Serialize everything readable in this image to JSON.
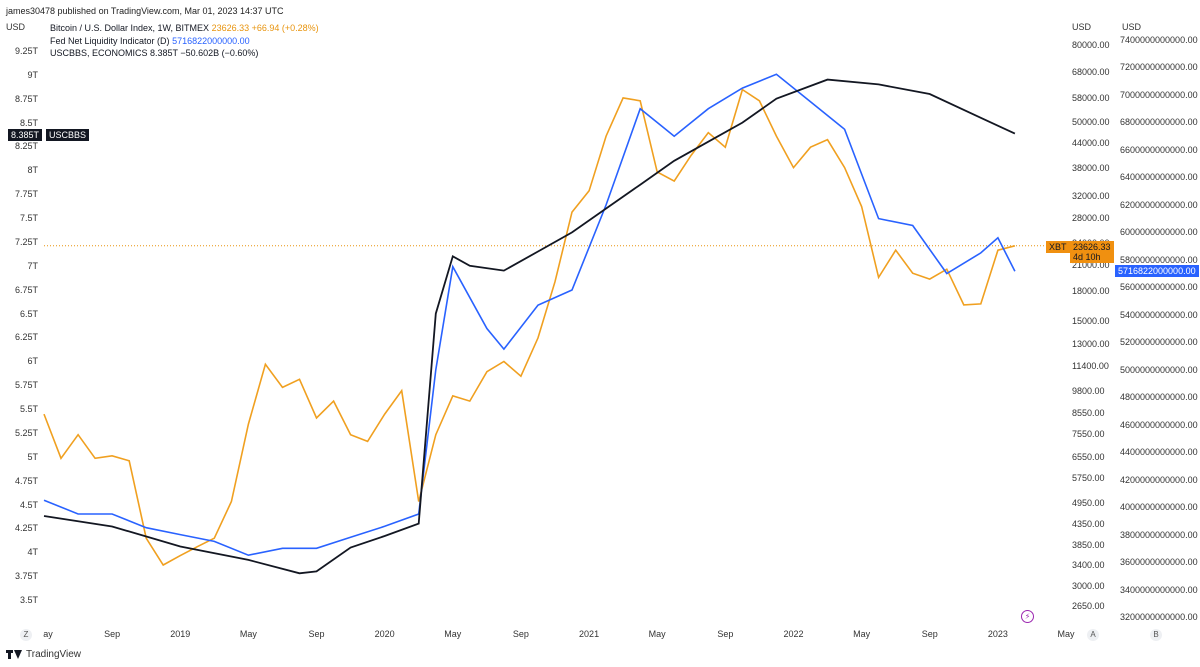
{
  "header": {
    "publisher": "james30478 published on TradingView.com, Mar 01, 2023 14:37 UTC"
  },
  "legend": [
    {
      "label": "Bitcoin / U.S. Dollar Index, 1W, BITMEX",
      "value": "23626.33 +66.94 (+0.28%)",
      "color": "#e8940e"
    },
    {
      "label": "Fed Net Liquidity Indicator (D)",
      "value": "5716822000000.00",
      "color": "#2962ff"
    },
    {
      "label": "USCBBS, ECONOMICS 8.385T −50.602B (−0.60%)",
      "value": "",
      "color": "#131722"
    }
  ],
  "axes": {
    "left_unit": "USD",
    "right1_unit": "USD",
    "right2_unit": "USD",
    "left_ticks": [
      "9.25T",
      "9T",
      "8.75T",
      "8.5T",
      "8.25T",
      "8T",
      "7.75T",
      "7.5T",
      "7.25T",
      "7T",
      "6.75T",
      "6.5T",
      "6.25T",
      "6T",
      "5.75T",
      "5.5T",
      "5.25T",
      "5T",
      "4.75T",
      "4.5T",
      "4.25T",
      "4T",
      "3.75T",
      "3.5T"
    ],
    "right1_ticks": [
      "80000.00",
      "68000.00",
      "58000.00",
      "50000.00",
      "44000.00",
      "38000.00",
      "32000.00",
      "28000.00",
      "24000.00",
      "21000.00",
      "18000.00",
      "15000.00",
      "13000.00",
      "11400.00",
      "9800.00",
      "8550.00",
      "7550.00",
      "6550.00",
      "5750.00",
      "4950.00",
      "4350.00",
      "3850.00",
      "3400.00",
      "3000.00",
      "2650.00"
    ],
    "right2_ticks": [
      "7400000000000.00",
      "7200000000000.00",
      "7000000000000.00",
      "6800000000000.00",
      "6600000000000.00",
      "6400000000000.00",
      "6200000000000.00",
      "6000000000000.00",
      "5800000000000.00",
      "5600000000000.00",
      "5400000000000.00",
      "5200000000000.00",
      "5000000000000.00",
      "4800000000000.00",
      "4600000000000.00",
      "4400000000000.00",
      "4200000000000.00",
      "4000000000000.00",
      "3800000000000.00",
      "3600000000000.00",
      "3400000000000.00",
      "3200000000000.00"
    ],
    "x_ticks": [
      "ay",
      "Sep",
      "2019",
      "May",
      "Sep",
      "2020",
      "May",
      "Sep",
      "2021",
      "May",
      "Sep",
      "2022",
      "May",
      "Sep",
      "2023",
      "May"
    ]
  },
  "tags": {
    "uscbbs_value": "8.385T",
    "uscbbs_name": "USCBBS",
    "xbt_name": "XBT",
    "xbt_value": "23626.33",
    "xbt_countdown": "4d 10h",
    "liquidity_value": "5716822000000.00"
  },
  "footer": {
    "brand": "TradingView",
    "left_button": "Z",
    "right_button_a": "A",
    "right_button_b": "B"
  },
  "chart_data": {
    "type": "line",
    "x_range": [
      "2018-05",
      "2023-05"
    ],
    "series": [
      {
        "name": "Bitcoin / U.S. Dollar Index, 1W, BITMEX",
        "color": "#e8940e",
        "axis": "right1",
        "points": [
          [
            "2018-05",
            8500
          ],
          [
            "2018-06",
            6500
          ],
          [
            "2018-07",
            7500
          ],
          [
            "2018-08",
            6500
          ],
          [
            "2018-09",
            6600
          ],
          [
            "2018-10",
            6400
          ],
          [
            "2018-11",
            4000
          ],
          [
            "2018-12",
            3400
          ],
          [
            "2019-01",
            3600
          ],
          [
            "2019-02",
            3800
          ],
          [
            "2019-03",
            4000
          ],
          [
            "2019-04",
            5000
          ],
          [
            "2019-05",
            8000
          ],
          [
            "2019-06",
            11500
          ],
          [
            "2019-07",
            10000
          ],
          [
            "2019-08",
            10500
          ],
          [
            "2019-09",
            8300
          ],
          [
            "2019-10",
            9200
          ],
          [
            "2019-11",
            7500
          ],
          [
            "2019-12",
            7200
          ],
          [
            "2020-01",
            8500
          ],
          [
            "2020-02",
            9800
          ],
          [
            "2020-03",
            5000
          ],
          [
            "2020-04",
            7500
          ],
          [
            "2020-05",
            9500
          ],
          [
            "2020-06",
            9200
          ],
          [
            "2020-07",
            11000
          ],
          [
            "2020-08",
            11700
          ],
          [
            "2020-09",
            10700
          ],
          [
            "2020-10",
            13500
          ],
          [
            "2020-11",
            19000
          ],
          [
            "2020-12",
            29000
          ],
          [
            "2021-01",
            33000
          ],
          [
            "2021-02",
            46000
          ],
          [
            "2021-03",
            58000
          ],
          [
            "2021-04",
            57000
          ],
          [
            "2021-05",
            37000
          ],
          [
            "2021-06",
            35000
          ],
          [
            "2021-07",
            41000
          ],
          [
            "2021-08",
            47000
          ],
          [
            "2021-09",
            43000
          ],
          [
            "2021-10",
            61000
          ],
          [
            "2021-11",
            57000
          ],
          [
            "2021-12",
            46000
          ],
          [
            "2022-01",
            38000
          ],
          [
            "2022-02",
            43000
          ],
          [
            "2022-03",
            45000
          ],
          [
            "2022-04",
            38000
          ],
          [
            "2022-05",
            30000
          ],
          [
            "2022-06",
            19500
          ],
          [
            "2022-07",
            23000
          ],
          [
            "2022-08",
            20000
          ],
          [
            "2022-09",
            19300
          ],
          [
            "2022-10",
            20500
          ],
          [
            "2022-11",
            16500
          ],
          [
            "2022-12",
            16600
          ],
          [
            "2023-01",
            23000
          ],
          [
            "2023-02",
            23626
          ]
        ]
      },
      {
        "name": "Fed Net Liquidity Indicator (D)",
        "color": "#2962ff",
        "axis": "right2",
        "points": [
          [
            "2018-05",
            4050000000000
          ],
          [
            "2018-07",
            3950000000000
          ],
          [
            "2018-09",
            3950000000000
          ],
          [
            "2018-11",
            3850000000000
          ],
          [
            "2019-01",
            3800000000000
          ],
          [
            "2019-03",
            3750000000000
          ],
          [
            "2019-05",
            3650000000000
          ],
          [
            "2019-07",
            3700000000000
          ],
          [
            "2019-09",
            3700000000000
          ],
          [
            "2019-11",
            3780000000000
          ],
          [
            "2020-01",
            3860000000000
          ],
          [
            "2020-03",
            3950000000000
          ],
          [
            "2020-04",
            5000000000000
          ],
          [
            "2020-05",
            5750000000000
          ],
          [
            "2020-07",
            5300000000000
          ],
          [
            "2020-08",
            5150000000000
          ],
          [
            "2020-10",
            5470000000000
          ],
          [
            "2020-12",
            5580000000000
          ],
          [
            "2021-02",
            6200000000000
          ],
          [
            "2021-04",
            6900000000000
          ],
          [
            "2021-06",
            6700000000000
          ],
          [
            "2021-08",
            6900000000000
          ],
          [
            "2021-10",
            7050000000000
          ],
          [
            "2021-12",
            7150000000000
          ],
          [
            "2022-02",
            6950000000000
          ],
          [
            "2022-04",
            6750000000000
          ],
          [
            "2022-06",
            6100000000000
          ],
          [
            "2022-08",
            6050000000000
          ],
          [
            "2022-10",
            5700000000000
          ],
          [
            "2022-12",
            5850000000000
          ],
          [
            "2023-01",
            5960000000000
          ],
          [
            "2023-02",
            5716822000000
          ]
        ]
      },
      {
        "name": "USCBBS, ECONOMICS",
        "color": "#131722",
        "axis": "left",
        "points": [
          [
            "2018-05",
            4380000000000.0
          ],
          [
            "2018-09",
            4270000000000.0
          ],
          [
            "2019-01",
            4060000000000.0
          ],
          [
            "2019-05",
            3920000000000.0
          ],
          [
            "2019-08",
            3780000000000.0
          ],
          [
            "2019-09",
            3800000000000.0
          ],
          [
            "2019-11",
            4050000000000.0
          ],
          [
            "2020-01",
            4170000000000.0
          ],
          [
            "2020-03",
            4300000000000.0
          ],
          [
            "2020-04",
            6500000000000.0
          ],
          [
            "2020-05",
            7100000000000.0
          ],
          [
            "2020-06",
            7000000000000.0
          ],
          [
            "2020-08",
            6950000000000.0
          ],
          [
            "2020-10",
            7150000000000.0
          ],
          [
            "2020-12",
            7350000000000.0
          ],
          [
            "2021-02",
            7600000000000.0
          ],
          [
            "2021-04",
            7850000000000.0
          ],
          [
            "2021-06",
            8100000000000.0
          ],
          [
            "2021-08",
            8300000000000.0
          ],
          [
            "2021-10",
            8500000000000.0
          ],
          [
            "2021-12",
            8750000000000.0
          ],
          [
            "2022-03",
            8950000000000.0
          ],
          [
            "2022-06",
            8900000000000.0
          ],
          [
            "2022-09",
            8800000000000.0
          ],
          [
            "2022-12",
            8550000000000.0
          ],
          [
            "2023-02",
            8385000000000.0
          ]
        ]
      }
    ],
    "axes_ranges": {
      "left": [
        3500000000000.0,
        9250000000000.0
      ],
      "right1_log": [
        2650,
        80000
      ],
      "right2": [
        3200000000000,
        7400000000000
      ]
    },
    "current_price_line": 23626.33,
    "grid": false,
    "legend_position": "top-left"
  }
}
